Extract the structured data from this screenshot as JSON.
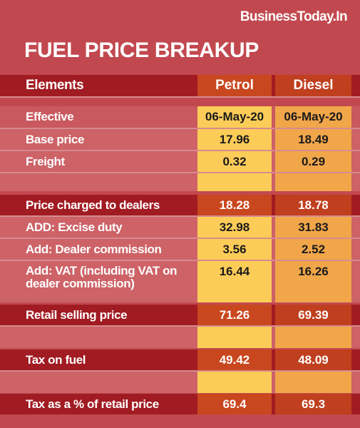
{
  "brand": "BusinessToday.In",
  "title": "FUEL PRICE BREAKUP",
  "header": {
    "label": "Elements",
    "petrol": "Petrol",
    "diesel": "Diesel"
  },
  "rows": [
    {
      "label": "Effective",
      "petrol": "06-May-20",
      "diesel": "06-May-20"
    },
    {
      "label": "Base price",
      "petrol": "17.96",
      "diesel": "18.49"
    },
    {
      "label": "Freight",
      "petrol": "0.32",
      "diesel": "0.29"
    },
    {
      "label": "",
      "petrol": "",
      "diesel": ""
    },
    {
      "label": "Price charged to dealers",
      "petrol": "18.28",
      "diesel": "18.78"
    },
    {
      "label": "ADD: Excise duty",
      "petrol": "32.98",
      "diesel": "31.83"
    },
    {
      "label": "Add: Dealer commission",
      "petrol": "3.56",
      "diesel": "2.52"
    },
    {
      "label": "Add: VAT (including VAT on dealer commission)",
      "petrol": "16.44",
      "diesel": "16.26"
    },
    {
      "label": "",
      "petrol": "",
      "diesel": ""
    },
    {
      "label": "Retail selling price",
      "petrol": "71.26",
      "diesel": "69.39"
    },
    {
      "label": "",
      "petrol": "",
      "diesel": ""
    },
    {
      "label": "Tax on fuel",
      "petrol": "49.42",
      "diesel": "48.09"
    },
    {
      "label": "",
      "petrol": "",
      "diesel": ""
    },
    {
      "label": "Tax as a % of retail price",
      "petrol": "69.4",
      "diesel": "69.3"
    }
  ]
}
